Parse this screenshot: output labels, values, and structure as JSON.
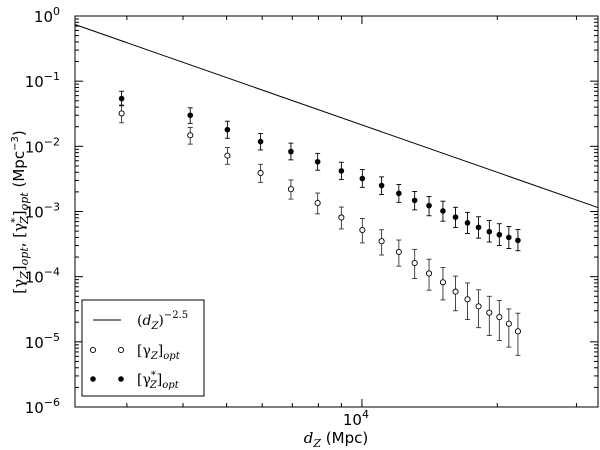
{
  "chart_data": {
    "type": "scatter",
    "xscale": "log",
    "yscale": "log",
    "xlim": [
      2300,
      33500
    ],
    "ylim": [
      1e-06,
      1
    ],
    "xlabel": "d_Z (Mpc)",
    "ylabel": "[γ_Z]_opt, [γ*_Z]_opt (Mpc^-3)",
    "grid": false,
    "legend_placement": "lower-left",
    "y_ticks": [
      {
        "value": 1,
        "base": "10",
        "exp": "0"
      },
      {
        "value": 0.1,
        "base": "10",
        "exp": "-1"
      },
      {
        "value": 0.01,
        "base": "10",
        "exp": "-2"
      },
      {
        "value": 0.001,
        "base": "10",
        "exp": "-3"
      },
      {
        "value": 0.0001,
        "base": "10",
        "exp": "-4"
      },
      {
        "value": 1e-05,
        "base": "10",
        "exp": "-5"
      },
      {
        "value": 1e-06,
        "base": "10",
        "exp": "-6"
      }
    ],
    "x_ticks": [
      {
        "value": 10000,
        "base": "10",
        "exp": "4"
      }
    ],
    "series": [
      {
        "name": "(d_Z)^-2.5",
        "kind": "line",
        "color": "#000000",
        "x": [
          2300,
          33500
        ],
        "y": [
          0.74,
          0.00115
        ]
      },
      {
        "name": "[γ_Z]_opt",
        "kind": "points",
        "marker": "open-circle",
        "x": [
          2920,
          4150,
          5020,
          5950,
          6950,
          7970,
          9000,
          10020,
          11060,
          12080,
          13100,
          14100,
          15140,
          16150,
          17170,
          18170,
          19200,
          20210,
          21220,
          22230
        ],
        "y": [
          0.032,
          0.0148,
          0.0072,
          0.0039,
          0.0022,
          0.00135,
          0.00081,
          0.00052,
          0.00035,
          0.00024,
          0.000162,
          0.000112,
          8.2e-05,
          5.9e-05,
          4.5e-05,
          3.5e-05,
          2.8e-05,
          2.4e-05,
          1.9e-05,
          1.45e-05
        ],
        "err_low": [
          0.023,
          0.0108,
          0.0053,
          0.0028,
          0.00155,
          0.00092,
          0.00054,
          0.00033,
          0.000215,
          0.000145,
          9.35e-05,
          6.2e-05,
          4.4e-05,
          3e-05,
          2.2e-05,
          1.65e-05,
          1.25e-05,
          1.05e-05,
          8.3e-06,
          6.2e-06
        ],
        "err_high": [
          0.043,
          0.0195,
          0.0096,
          0.0053,
          0.00305,
          0.00192,
          0.00117,
          0.00078,
          0.000525,
          0.000365,
          0.000262,
          0.000185,
          0.000138,
          0.000102,
          8e-05,
          6.3e-05,
          5e-05,
          4.3e-05,
          3.2e-05,
          2.75e-05
        ]
      },
      {
        "name": "[γ*_Z]_opt",
        "kind": "points",
        "marker": "filled-circle",
        "x": [
          2920,
          4150,
          5020,
          5950,
          6950,
          7970,
          9000,
          10020,
          11060,
          12080,
          13100,
          14100,
          15140,
          16150,
          17170,
          18170,
          19200,
          20210,
          21220,
          22230
        ],
        "y": [
          0.054,
          0.03,
          0.018,
          0.0118,
          0.0083,
          0.0058,
          0.0042,
          0.0032,
          0.0025,
          0.0019,
          0.00148,
          0.00123,
          0.00102,
          0.00082,
          0.00067,
          0.00057,
          0.00049,
          0.00044,
          0.0004,
          0.00036
        ],
        "err_low": [
          0.042,
          0.0225,
          0.0133,
          0.0088,
          0.0062,
          0.0043,
          0.0031,
          0.00235,
          0.00182,
          0.00138,
          0.00106,
          0.00086,
          0.00071,
          0.00057,
          0.00046,
          0.00039,
          0.00034,
          0.0003,
          0.00027,
          0.00025
        ],
        "err_high": [
          0.07,
          0.039,
          0.0243,
          0.0157,
          0.0112,
          0.0078,
          0.0057,
          0.0044,
          0.0034,
          0.0026,
          0.00203,
          0.0017,
          0.00144,
          0.00116,
          0.00097,
          0.00083,
          0.00073,
          0.00065,
          0.00059,
          0.00053
        ]
      }
    ]
  }
}
